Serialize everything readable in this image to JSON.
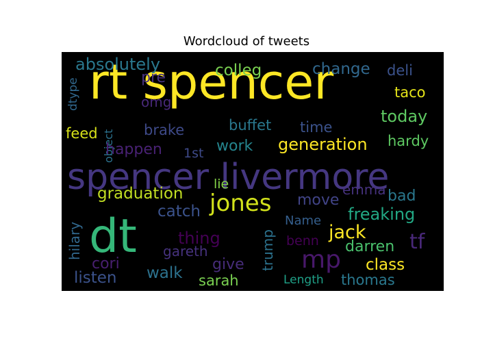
{
  "chart_data": {
    "type": "wordcloud",
    "title": "Wordcloud of tweets",
    "background": "#000000",
    "words": [
      {
        "text": "rt spencer",
        "color": "#fde725"
      },
      {
        "text": "spencer livermore",
        "color": "#453781"
      },
      {
        "text": "dt",
        "color": "#35b779"
      },
      {
        "text": "jones",
        "color": "#d2e21b"
      },
      {
        "text": "mp",
        "color": "#48186a"
      },
      {
        "text": "absolutely",
        "color": "#2a788e"
      },
      {
        "text": "colleg",
        "color": "#7ad151"
      },
      {
        "text": "change",
        "color": "#31688e"
      },
      {
        "text": "deli",
        "color": "#3b528b"
      },
      {
        "text": "pre",
        "color": "#46327e"
      },
      {
        "text": "omg",
        "color": "#482878"
      },
      {
        "text": "taco",
        "color": "#e5e419"
      },
      {
        "text": "today",
        "color": "#5ec962"
      },
      {
        "text": "dtype",
        "color": "#31688e"
      },
      {
        "text": "object",
        "color": "#2c728e"
      },
      {
        "text": "brake",
        "color": "#3e4a89"
      },
      {
        "text": "buffet",
        "color": "#2a788e"
      },
      {
        "text": "time",
        "color": "#3b528b"
      },
      {
        "text": "feed",
        "color": "#d8e219"
      },
      {
        "text": "happen",
        "color": "#482173"
      },
      {
        "text": "work",
        "color": "#25858e"
      },
      {
        "text": "generation",
        "color": "#fde725"
      },
      {
        "text": "hardy",
        "color": "#5ec962"
      },
      {
        "text": "1st",
        "color": "#3e4a89"
      },
      {
        "text": "graduation",
        "color": "#c2df23"
      },
      {
        "text": "lie",
        "color": "#86d549"
      },
      {
        "text": "emma",
        "color": "#46327e"
      },
      {
        "text": "move",
        "color": "#414487"
      },
      {
        "text": "bad",
        "color": "#2a788e"
      },
      {
        "text": "catch",
        "color": "#3b528b"
      },
      {
        "text": "freaking",
        "color": "#22a884"
      },
      {
        "text": "hilary",
        "color": "#31688e"
      },
      {
        "text": "Name",
        "color": "#355f8d"
      },
      {
        "text": "jack",
        "color": "#fde725"
      },
      {
        "text": "thing",
        "color": "#440154"
      },
      {
        "text": "trump",
        "color": "#2c728e"
      },
      {
        "text": "benn",
        "color": "#440154"
      },
      {
        "text": "tf",
        "color": "#482878"
      },
      {
        "text": "darren",
        "color": "#4ac16d"
      },
      {
        "text": "gareth",
        "color": "#46327e"
      },
      {
        "text": "cori",
        "color": "#481f70"
      },
      {
        "text": "give",
        "color": "#472c7a"
      },
      {
        "text": "class",
        "color": "#fde725"
      },
      {
        "text": "walk",
        "color": "#2c728e"
      },
      {
        "text": "listen",
        "color": "#3b528b"
      },
      {
        "text": "sarah",
        "color": "#7ad151"
      },
      {
        "text": "Length",
        "color": "#1fa188"
      },
      {
        "text": "thomas",
        "color": "#2a788e"
      }
    ]
  }
}
